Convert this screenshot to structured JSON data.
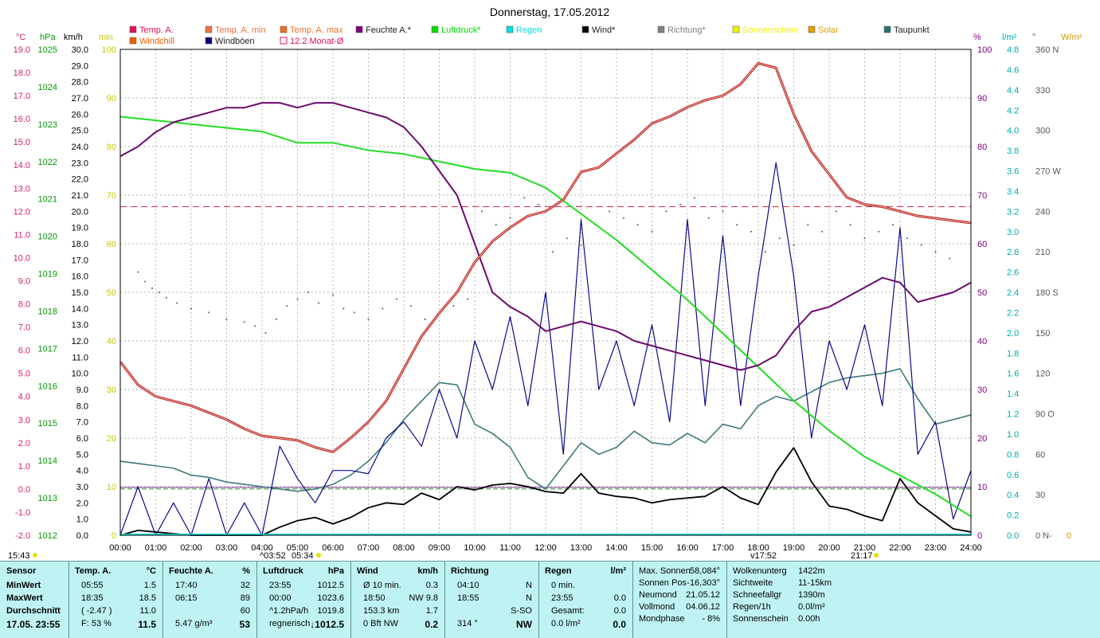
{
  "title": "Donnerstag, 17.05.2012",
  "colors": {
    "temp": "#e8433a",
    "humidity": "#6b0a6e",
    "pressure": "#22dd22",
    "wind": "#000000",
    "gust": "#0a0a88",
    "dewpoint": "#3d7a7a",
    "direction": "#555555",
    "avg_line": "#d0304a",
    "axis_c": "#d81e6a",
    "axis_hpa": "#009900",
    "axis_min": "#c8c800",
    "axis_pct": "#800080",
    "axis_rain": "#00aaaa",
    "axis_wm2": "#c8a000"
  },
  "legend": [
    {
      "label": "Temp. A.",
      "color": "#e0105a",
      "shape": "box"
    },
    {
      "label": "Temp. A. min",
      "color": "#f07040",
      "shape": "box"
    },
    {
      "label": "Temp. A. max",
      "color": "#f07020",
      "shape": "box"
    },
    {
      "label": "Feuchte A.*",
      "color": "#800080",
      "shape": "box"
    },
    {
      "label": "Luftdruck*",
      "color": "#00e000",
      "shape": "box"
    },
    {
      "label": "Regen",
      "color": "#00e0e0",
      "shape": "box"
    },
    {
      "label": "Wind*",
      "color": "#000000",
      "shape": "box"
    },
    {
      "label": "Richtung*",
      "color": "#808080",
      "shape": "box"
    },
    {
      "label": "Sonnenschein",
      "color": "#f0f000",
      "shape": "box"
    },
    {
      "label": "Solar",
      "color": "#e0a000",
      "shape": "box"
    },
    {
      "label": "Taupunkt",
      "color": "#2e7070",
      "shape": "box"
    },
    {
      "label": "Windchill",
      "color": "#f06000",
      "shape": "box"
    },
    {
      "label": "Windböen",
      "color": "#000080",
      "shape": "box"
    },
    {
      "label": "12.2 Monat-Ø",
      "color": "#e0105a",
      "shape": "outline"
    }
  ],
  "axis_units": {
    "c": "°C",
    "hpa": "hPa",
    "kmh": "km/h",
    "min": "min",
    "pct": "%",
    "rain": "l/m²",
    "deg": "°",
    "wm2": "W/m²"
  },
  "ticks": {
    "c": [
      "19.0",
      "18.0",
      "17.0",
      "16.0",
      "15.0",
      "14.0",
      "13.0",
      "12.0",
      "11.0",
      "10.0",
      "9.0",
      "8.0",
      "7.0",
      "6.0",
      "5.0",
      "4.0",
      "3.0",
      "2.0",
      "1.0",
      "0.0",
      "-1.0",
      "-2.0"
    ],
    "hpa": [
      "1025",
      "1024",
      "1023",
      "1022",
      "1021",
      "1020",
      "1019",
      "1018",
      "1017",
      "1016",
      "1015",
      "1014",
      "1013",
      "1012"
    ],
    "kmh": [
      "30.0",
      "29.0",
      "28.0",
      "27.0",
      "26.0",
      "25.0",
      "24.0",
      "23.0",
      "22.0",
      "21.0",
      "20.0",
      "19.0",
      "18.0",
      "17.0",
      "16.0",
      "15.0",
      "14.0",
      "13.0",
      "12.0",
      "11.0",
      "10.0",
      "9.0",
      "8.0",
      "7.0",
      "6.0",
      "5.0",
      "4.0",
      "3.0",
      "2.0",
      "1.0",
      "0.0"
    ],
    "min": [
      "100",
      "90",
      "80",
      "70",
      "60",
      "50",
      "40",
      "30",
      "20",
      "10",
      "0"
    ],
    "pct": [
      "100",
      "90",
      "80",
      "70",
      "60",
      "50",
      "40",
      "30",
      "20",
      "10",
      "0"
    ],
    "rain": [
      "4.8",
      "4.6",
      "4.4",
      "4.2",
      "4.0",
      "3.8",
      "3.6",
      "3.4",
      "3.2",
      "3.0",
      "2.8",
      "2.6",
      "2.4",
      "2.2",
      "2.0",
      "1.8",
      "1.6",
      "1.4",
      "1.2",
      "1.0",
      "0.8",
      "0.6",
      "0.4",
      "0.2",
      "0.0"
    ],
    "deg": [
      "360 N",
      "330",
      "300",
      "270 W",
      "240",
      "210",
      "180 S",
      "150",
      "120",
      "90  O",
      "60",
      "30",
      "0    N-"
    ],
    "wm2": [
      "0"
    ],
    "x": [
      "00:00",
      "01:00",
      "02:00",
      "03:00",
      "04:00",
      "05:00",
      "06:00",
      "07:00",
      "08:00",
      "09:00",
      "10:00",
      "11:00",
      "12:00",
      "13:00",
      "14:00",
      "15:00",
      "16:00",
      "17:00",
      "18:00",
      "19:00",
      "20:00",
      "21:00",
      "22:00",
      "23:00",
      "24:00"
    ]
  },
  "below_axis": {
    "left_time": "15:43",
    "sunrise_marker": "03:52",
    "sunrise2": "05:34",
    "sunset_marker": "17:52",
    "sunset2": "21:17"
  },
  "chart_data": {
    "type": "line",
    "title": "Donnerstag, 17.05.2012",
    "x_unit": "hours",
    "xlim": [
      0,
      24
    ],
    "series": [
      {
        "name": "Temp. A.",
        "axis": "°C",
        "ylim": [
          -2,
          19
        ],
        "x": [
          0,
          0.5,
          1,
          1.5,
          2,
          2.5,
          3,
          3.5,
          4,
          4.5,
          5,
          5.5,
          6,
          6.5,
          7,
          7.5,
          8,
          8.5,
          9,
          9.5,
          10,
          10.5,
          11,
          11.5,
          12,
          12.5,
          13,
          13.5,
          14,
          14.5,
          15,
          15.5,
          16,
          16.5,
          17,
          17.5,
          18,
          18.5,
          19,
          19.5,
          20,
          20.5,
          21,
          21.5,
          22,
          22.5,
          23,
          23.5,
          24
        ],
        "values": [
          5.5,
          4.5,
          4.0,
          3.8,
          3.6,
          3.3,
          3.0,
          2.6,
          2.3,
          2.2,
          2.1,
          1.8,
          1.6,
          2.2,
          2.9,
          3.8,
          5.2,
          6.6,
          7.6,
          8.5,
          9.8,
          10.7,
          11.3,
          11.8,
          12.0,
          12.5,
          13.7,
          13.9,
          14.5,
          15.1,
          15.8,
          16.1,
          16.5,
          16.8,
          17.0,
          17.5,
          18.4,
          18.2,
          16.2,
          14.6,
          13.6,
          12.6,
          12.3,
          12.2,
          12.0,
          11.8,
          11.7,
          11.6,
          11.5
        ]
      },
      {
        "name": "Feuchte A.*",
        "axis": "%",
        "ylim": [
          0,
          100
        ],
        "x": [
          0,
          0.5,
          1,
          1.5,
          2,
          2.5,
          3,
          3.5,
          4,
          4.5,
          5,
          5.5,
          6,
          6.5,
          7,
          7.5,
          8,
          8.5,
          9,
          9.5,
          10,
          10.5,
          11,
          11.5,
          12,
          12.5,
          13,
          13.5,
          14,
          14.5,
          15,
          15.5,
          16,
          16.5,
          17,
          17.5,
          18,
          18.5,
          19,
          19.5,
          20,
          20.5,
          21,
          21.5,
          22,
          22.5,
          23,
          23.5,
          24
        ],
        "values": [
          78,
          80,
          83,
          85,
          86,
          87,
          88,
          88,
          89,
          89,
          88,
          89,
          89,
          88,
          87,
          86,
          84,
          80,
          75,
          70,
          60,
          50,
          47,
          45,
          42,
          43,
          44,
          43,
          42,
          40,
          39,
          38,
          37,
          36,
          35,
          34,
          35,
          37,
          42,
          46,
          47,
          49,
          51,
          53,
          52,
          48,
          49,
          50,
          52
        ]
      },
      {
        "name": "Luftdruck*",
        "axis": "hPa",
        "ylim": [
          1012,
          1025
        ],
        "x": [
          0,
          1,
          2,
          3,
          4,
          5,
          6,
          7,
          8,
          9,
          10,
          11,
          12,
          13,
          14,
          15,
          16,
          17,
          18,
          19,
          20,
          21,
          22,
          23,
          24
        ],
        "values": [
          1023.2,
          1023.1,
          1023.0,
          1022.9,
          1022.8,
          1022.5,
          1022.5,
          1022.3,
          1022.2,
          1022.0,
          1021.8,
          1021.7,
          1021.3,
          1020.6,
          1019.9,
          1019.1,
          1018.3,
          1017.4,
          1016.5,
          1015.6,
          1014.8,
          1014.1,
          1013.6,
          1013.1,
          1012.5
        ]
      },
      {
        "name": "Wind*",
        "axis": "km/h",
        "ylim": [
          0,
          30
        ],
        "x": [
          0,
          0.5,
          1,
          1.5,
          2,
          2.5,
          3,
          3.5,
          4,
          4.5,
          5,
          5.5,
          6,
          6.5,
          7,
          7.5,
          8,
          8.5,
          9,
          9.5,
          10,
          10.5,
          11,
          11.5,
          12,
          12.5,
          13,
          13.5,
          14,
          14.5,
          15,
          15.5,
          16,
          16.5,
          17,
          17.5,
          18,
          18.5,
          19,
          19.5,
          20,
          20.5,
          21,
          21.5,
          22,
          22.5,
          23,
          23.5,
          24
        ],
        "values": [
          0.0,
          0.3,
          0.2,
          0.1,
          0.0,
          0.0,
          0.0,
          0.0,
          0.0,
          0.5,
          0.9,
          1.1,
          0.7,
          1.1,
          1.7,
          2.0,
          1.9,
          2.6,
          2.2,
          3.0,
          2.8,
          3.1,
          3.2,
          3.0,
          2.7,
          2.6,
          3.8,
          2.6,
          2.4,
          2.3,
          2.0,
          2.2,
          2.3,
          2.4,
          3.0,
          2.3,
          1.9,
          3.9,
          5.4,
          3.3,
          1.8,
          1.6,
          1.2,
          0.9,
          3.5,
          2.0,
          1.2,
          0.4,
          0.2
        ]
      },
      {
        "name": "Windböen",
        "axis": "km/h",
        "ylim": [
          0,
          30
        ],
        "x": [
          0,
          0.5,
          1,
          1.5,
          2,
          2.5,
          3,
          3.5,
          4,
          4.5,
          5,
          5.5,
          6,
          6.5,
          7,
          7.5,
          8,
          8.5,
          9,
          9.5,
          10,
          10.5,
          11,
          11.5,
          12,
          12.5,
          13,
          13.5,
          14,
          14.5,
          15,
          15.5,
          16,
          16.5,
          17,
          17.5,
          18,
          18.5,
          19,
          19.5,
          20,
          20.5,
          21,
          21.5,
          22,
          22.5,
          23,
          23.5,
          24
        ],
        "values": [
          0.0,
          3.0,
          0.0,
          2.0,
          0.0,
          3.5,
          0.0,
          2.0,
          0.0,
          5.5,
          3.5,
          2.0,
          4.0,
          4.0,
          3.8,
          6.0,
          7.0,
          5.5,
          9.0,
          6.0,
          12.0,
          9.0,
          13.5,
          8.0,
          15.0,
          5.0,
          19.5,
          9.0,
          12.0,
          8.0,
          13.0,
          7.0,
          19.5,
          8.0,
          18.5,
          8.0,
          16.0,
          23.0,
          16.0,
          6.0,
          12.0,
          9.0,
          13.0,
          8.0,
          19.0,
          5.0,
          7.0,
          1.0,
          4.0
        ]
      },
      {
        "name": "Taupunkt",
        "axis": "°C",
        "ylim": [
          -2,
          19
        ],
        "x": [
          0,
          0.5,
          1,
          1.5,
          2,
          2.5,
          3,
          3.5,
          4,
          4.5,
          5,
          5.5,
          6,
          6.5,
          7,
          7.5,
          8,
          8.5,
          9,
          9.5,
          10,
          10.5,
          11,
          11.5,
          12,
          12.5,
          13,
          13.5,
          14,
          14.5,
          15,
          15.5,
          16,
          16.5,
          17,
          17.5,
          18,
          18.5,
          19,
          19.5,
          20,
          20.5,
          21,
          21.5,
          22,
          22.5,
          23,
          23.5,
          24
        ],
        "values": [
          1.2,
          1.1,
          1.0,
          0.9,
          0.6,
          0.5,
          0.3,
          0.2,
          0.1,
          0.0,
          -0.1,
          0.0,
          0.2,
          0.6,
          1.2,
          2.0,
          3.0,
          3.8,
          4.6,
          4.5,
          2.8,
          2.4,
          1.8,
          0.5,
          0.0,
          1.0,
          2.0,
          1.5,
          1.8,
          2.5,
          2.0,
          1.9,
          2.4,
          2.0,
          2.8,
          2.6,
          3.6,
          4.0,
          3.8,
          4.2,
          4.6,
          4.8,
          4.9,
          5.0,
          5.2,
          3.9,
          2.8,
          3.0,
          3.2
        ]
      },
      {
        "name": "Richtung*",
        "axis": "°",
        "ylim": [
          0,
          360
        ],
        "x": [
          0.5,
          0.7,
          0.9,
          1.1,
          1.3,
          1.6,
          2.0,
          2.5,
          3.0,
          3.5,
          3.8,
          4.1,
          4.4,
          4.7,
          5.0,
          5.3,
          5.6,
          6.0,
          6.3,
          6.6,
          7.0,
          7.4,
          7.8,
          8.2,
          8.6,
          9.0,
          9.4,
          9.8,
          10.2,
          10.6,
          11.0,
          11.4,
          11.8,
          12.2,
          12.6,
          13.0,
          13.4,
          13.8,
          14.2,
          14.6,
          15.0,
          15.4,
          15.8,
          16.2,
          16.6,
          17.0,
          17.4,
          17.8,
          18.2,
          18.6,
          19.0,
          19.4,
          19.8,
          20.2,
          20.6,
          21.0,
          21.4,
          21.8,
          22.2,
          22.6,
          23.0,
          23.4
        ],
        "values": [
          195,
          188,
          183,
          180,
          176,
          172,
          168,
          165,
          160,
          158,
          155,
          150,
          160,
          170,
          175,
          180,
          172,
          178,
          168,
          165,
          160,
          168,
          175,
          170,
          160,
          165,
          170,
          175,
          240,
          230,
          235,
          250,
          245,
          210,
          220,
          215,
          230,
          240,
          235,
          230,
          225,
          240,
          245,
          250,
          235,
          240,
          230,
          225,
          210,
          220,
          215,
          230,
          225,
          240,
          230,
          220,
          225,
          230,
          220,
          215,
          210,
          205
        ]
      },
      {
        "name": "12.2 Monat-Ø",
        "axis": "°C",
        "values": [
          12.2
        ]
      },
      {
        "name": "Windchill",
        "axis": "°C",
        "values": []
      },
      {
        "name": "Regen",
        "axis": "l/m²",
        "values": [
          0.0
        ]
      }
    ]
  },
  "panel": {
    "sensor": {
      "header": "Sensor",
      "rows": [
        "MinWert",
        "MaxWert",
        "Durchschnitt",
        "17.05. 23:55"
      ]
    },
    "temp": {
      "header": "Temp. A.",
      "unit": "°C",
      "rows": [
        [
          "05:55",
          "1.5"
        ],
        [
          "18:35",
          "18.5"
        ],
        [
          "( -2.47 )",
          "11.0"
        ],
        [
          "F: 53 %",
          "11.5"
        ]
      ]
    },
    "humidity": {
      "header": "Feuchte A.",
      "unit": "%",
      "rows": [
        [
          "17:40",
          "32"
        ],
        [
          "06:15",
          "89"
        ],
        [
          "",
          "60"
        ],
        [
          "5.47 g/m³",
          "53"
        ]
      ]
    },
    "pressure": {
      "header": "Luftdruck",
      "unit": "hPa",
      "rows": [
        [
          "23:55",
          "1012.5"
        ],
        [
          "00:00",
          "1023.6"
        ],
        [
          "^1.2hPa/h",
          "1019.8"
        ],
        [
          "regnerisch",
          "↓1012.5"
        ]
      ]
    },
    "wind": {
      "header": "Wind",
      "unit": "km/h",
      "rows": [
        [
          "Ø 10 min.",
          "0.3"
        ],
        [
          "18:50",
          "NW 9.8"
        ],
        [
          "153.3 km",
          "1.7"
        ],
        [
          "0 Bft NW",
          "0.2"
        ]
      ]
    },
    "direction": {
      "header": "Richtung",
      "rows": [
        [
          "04:10",
          "N"
        ],
        [
          "18:55",
          "N"
        ],
        [
          "",
          "S-SO"
        ],
        [
          "314 °",
          "NW"
        ]
      ]
    },
    "rain": {
      "header": "Regen",
      "unit": "l/m²",
      "rows": [
        [
          "0 min.",
          ""
        ],
        [
          "23:55",
          "0.0"
        ],
        [
          "Gesamt:",
          "0.0"
        ],
        [
          "0.0 l/m²",
          "0.0"
        ]
      ]
    },
    "astro": {
      "rows": [
        [
          "Max. Sonnen",
          "58,084°"
        ],
        [
          "Sonnen Pos",
          "-16,303°"
        ],
        [
          "Neumond",
          "21.05.12"
        ],
        [
          "Vollmond",
          "04.06.12"
        ],
        [
          "Mondphase",
          "- 8%"
        ]
      ]
    },
    "misc": {
      "rows": [
        [
          "Wolkenunterg",
          "1422m"
        ],
        [
          "Sichtweite",
          "11-15km"
        ],
        [
          "Schneefallgr",
          "1390m"
        ],
        [
          "Regen/1h",
          "0.0l/m²"
        ],
        [
          "Sonnenschein",
          "0.00h"
        ]
      ]
    }
  }
}
